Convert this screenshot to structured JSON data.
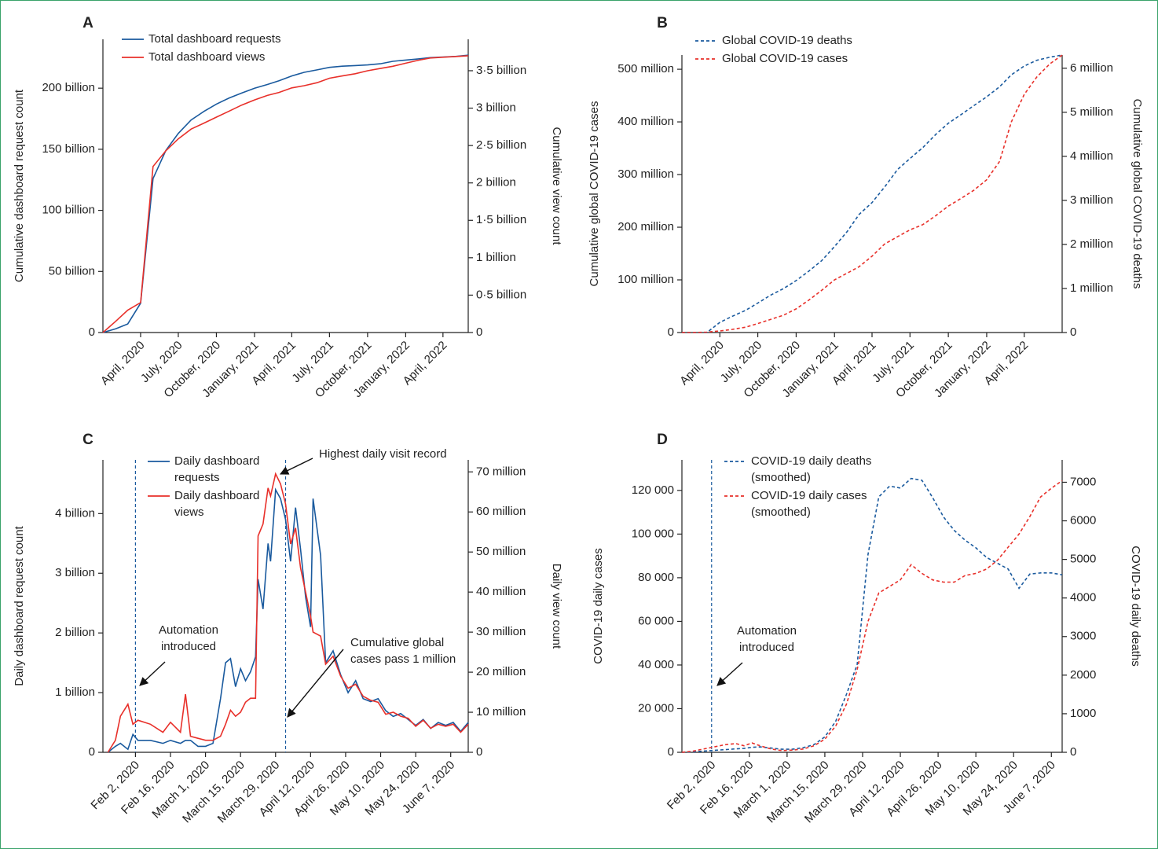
{
  "chart_data": [
    {
      "type": "line",
      "panel": "A",
      "line_style": "solid",
      "ylabel": "Cumulative dashboard request count",
      "y2label": "Cumulative view count",
      "x": [
        "2020-01",
        "2020-02",
        "2020-03",
        "2020-04",
        "2020-05",
        "2020-06",
        "2020-07",
        "2020-08",
        "2020-09",
        "2020-10",
        "2020-11",
        "2020-12",
        "2021-01",
        "2021-02",
        "2021-03",
        "2021-04",
        "2021-05",
        "2021-06",
        "2021-07",
        "2021-08",
        "2021-09",
        "2021-10",
        "2021-11",
        "2021-12",
        "2022-01",
        "2022-02",
        "2022-03",
        "2022-04",
        "2022-05",
        "2022-06"
      ],
      "xlim": [
        "2020-01",
        "2022-06"
      ],
      "xticks": [
        {
          "value": "2020-04",
          "label": "April, 2020"
        },
        {
          "value": "2020-07",
          "label": "July, 2020"
        },
        {
          "value": "2020-10",
          "label": "October, 2020"
        },
        {
          "value": "2021-01",
          "label": "January, 2021"
        },
        {
          "value": "2021-04",
          "label": "April, 2021"
        },
        {
          "value": "2021-07",
          "label": "July, 2021"
        },
        {
          "value": "2021-10",
          "label": "October, 2021"
        },
        {
          "value": "2022-01",
          "label": "January, 2022"
        },
        {
          "value": "2022-04",
          "label": "April, 2022"
        }
      ],
      "ylim": [
        0,
        240
      ],
      "yticks": [
        0,
        {
          "value": 50,
          "label": "50 billion"
        },
        {
          "value": 100,
          "label": "100 billion"
        },
        {
          "value": 150,
          "label": "150 billion"
        },
        {
          "value": 200,
          "label": "200 billion"
        }
      ],
      "y2lim": [
        0,
        3.92
      ],
      "y2ticks": [
        0,
        {
          "value": 0.5,
          "label": "0·5 billion"
        },
        {
          "value": 1,
          "label": "1 billion"
        },
        {
          "value": 1.5,
          "label": "1·5 billion"
        },
        {
          "value": 2,
          "label": "2 billion"
        },
        {
          "value": 2.5,
          "label": "2·5 billion"
        },
        {
          "value": 3,
          "label": "3 billion"
        },
        {
          "value": 3.5,
          "label": "3·5 billion"
        }
      ],
      "series": [
        {
          "name": "Total dashboard requests",
          "color": "#1a5a9e",
          "values": [
            0,
            3,
            7,
            24,
            126,
            149,
            163,
            174,
            181,
            187,
            192,
            196,
            200,
            203,
            206,
            210,
            213,
            215,
            217,
            218,
            218.5,
            219,
            220,
            222,
            223,
            224,
            225,
            225.5,
            226,
            227
          ]
        },
        {
          "name": "Total dashboard views",
          "color": "#e8302a",
          "axis": "y2",
          "values": [
            0,
            0.15,
            0.3,
            0.4,
            2.22,
            2.43,
            2.59,
            2.72,
            2.8,
            2.88,
            2.96,
            3.04,
            3.11,
            3.17,
            3.21,
            3.27,
            3.3,
            3.34,
            3.4,
            3.43,
            3.46,
            3.5,
            3.53,
            3.56,
            3.6,
            3.64,
            3.67,
            3.68,
            3.69,
            3.7
          ]
        }
      ]
    },
    {
      "type": "line",
      "panel": "B",
      "line_style": "dashed",
      "ylabel": "Cumulative global COVID-19 cases",
      "y2label": "Cumulative global COVID-19 deaths",
      "x": [
        "2020-01",
        "2020-02",
        "2020-03",
        "2020-04",
        "2020-05",
        "2020-06",
        "2020-07",
        "2020-08",
        "2020-09",
        "2020-10",
        "2020-11",
        "2020-12",
        "2021-01",
        "2021-02",
        "2021-03",
        "2021-04",
        "2021-05",
        "2021-06",
        "2021-07",
        "2021-08",
        "2021-09",
        "2021-10",
        "2021-11",
        "2021-12",
        "2022-01",
        "2022-02",
        "2022-03",
        "2022-04",
        "2022-05",
        "2022-06",
        "2022-07"
      ],
      "xlim": [
        "2020-01",
        "2022-07"
      ],
      "xticks": [
        {
          "value": "2020-04",
          "label": "April, 2020"
        },
        {
          "value": "2020-07",
          "label": "July, 2020"
        },
        {
          "value": "2020-10",
          "label": "October, 2020"
        },
        {
          "value": "2021-01",
          "label": "January, 2021"
        },
        {
          "value": "2021-04",
          "label": "April, 2021"
        },
        {
          "value": "2021-07",
          "label": "July, 2021"
        },
        {
          "value": "2021-10",
          "label": "October, 2021"
        },
        {
          "value": "2022-01",
          "label": "January, 2022"
        },
        {
          "value": "2022-04",
          "label": "April, 2022"
        }
      ],
      "ylim": [
        0,
        527
      ],
      "yticks": [
        0,
        {
          "value": 100,
          "label": "100 million"
        },
        {
          "value": 200,
          "label": "200 million"
        },
        {
          "value": 300,
          "label": "300 million"
        },
        {
          "value": 400,
          "label": "400 million"
        },
        {
          "value": 500,
          "label": "500 million"
        }
      ],
      "y2lim": [
        0,
        6.3
      ],
      "y2ticks": [
        0,
        {
          "value": 1,
          "label": "1 million"
        },
        {
          "value": 2,
          "label": "2 million"
        },
        {
          "value": 3,
          "label": "3 million"
        },
        {
          "value": 4,
          "label": "4 million"
        },
        {
          "value": 5,
          "label": "5 million"
        },
        {
          "value": 6,
          "label": "6 million"
        }
      ],
      "series": [
        {
          "name": "Global COVID-19 deaths",
          "color": "#1a5a9e",
          "axis": "y2",
          "values": [
            0,
            0,
            0,
            0.23,
            0.37,
            0.5,
            0.67,
            0.85,
            1.0,
            1.18,
            1.4,
            1.63,
            1.95,
            2.3,
            2.68,
            2.95,
            3.3,
            3.7,
            3.95,
            4.2,
            4.5,
            4.75,
            4.95,
            5.15,
            5.35,
            5.58,
            5.85,
            6.05,
            6.18,
            6.25,
            6.3
          ]
        },
        {
          "name": "Global COVID-19 cases",
          "color": "#e8302a",
          "values": [
            0,
            0,
            0.8,
            3,
            6,
            10,
            17,
            25,
            33,
            45,
            62,
            80,
            100,
            113,
            125,
            145,
            168,
            182,
            195,
            205,
            222,
            240,
            255,
            270,
            290,
            325,
            400,
            452,
            485,
            510,
            527
          ]
        }
      ]
    },
    {
      "type": "line",
      "panel": "C",
      "line_style": "solid",
      "ylabel": "Daily dashboard request count",
      "y2label": "Daily view count",
      "x": [
        "2020-01-22",
        "2020-01-25",
        "2020-01-27",
        "2020-01-30",
        "2020-02-01",
        "2020-02-03",
        "2020-02-08",
        "2020-02-13",
        "2020-02-16",
        "2020-02-20",
        "2020-02-22",
        "2020-02-24",
        "2020-02-27",
        "2020-03-01",
        "2020-03-04",
        "2020-03-07",
        "2020-03-09",
        "2020-03-11",
        "2020-03-13",
        "2020-03-15",
        "2020-03-17",
        "2020-03-19",
        "2020-03-21",
        "2020-03-22",
        "2020-03-24",
        "2020-03-26",
        "2020-03-27",
        "2020-03-29",
        "2020-03-31",
        "2020-04-02",
        "2020-04-04",
        "2020-04-06",
        "2020-04-08",
        "2020-04-10",
        "2020-04-12",
        "2020-04-13",
        "2020-04-16",
        "2020-04-18",
        "2020-04-21",
        "2020-04-24",
        "2020-04-27",
        "2020-04-30",
        "2020-05-03",
        "2020-05-06",
        "2020-05-09",
        "2020-05-12",
        "2020-05-15",
        "2020-05-18",
        "2020-05-21",
        "2020-05-24",
        "2020-05-27",
        "2020-05-30",
        "2020-06-02",
        "2020-06-05",
        "2020-06-08",
        "2020-06-11",
        "2020-06-14"
      ],
      "xlim": [
        "2020-01-20",
        "2020-06-14"
      ],
      "xticks": [
        {
          "value": "2020-02-02",
          "label": "Feb 2, 2020"
        },
        {
          "value": "2020-02-16",
          "label": "Feb 16, 2020"
        },
        {
          "value": "2020-03-01",
          "label": "March 1, 2020"
        },
        {
          "value": "2020-03-15",
          "label": "March 15, 2020"
        },
        {
          "value": "2020-03-29",
          "label": "March 29, 2020"
        },
        {
          "value": "2020-04-12",
          "label": "April 12, 2020"
        },
        {
          "value": "2020-04-26",
          "label": "April 26, 2020"
        },
        {
          "value": "2020-05-10",
          "label": "May 10, 2020"
        },
        {
          "value": "2020-05-24",
          "label": "May 24, 2020"
        },
        {
          "value": "2020-06-07",
          "label": "June 7, 2020"
        }
      ],
      "ylim": [
        0,
        4.9
      ],
      "yticks": [
        0,
        {
          "value": 1,
          "label": "1 billion"
        },
        {
          "value": 2,
          "label": "2 billion"
        },
        {
          "value": 3,
          "label": "3 billion"
        },
        {
          "value": 4,
          "label": "4 billion"
        }
      ],
      "y2lim": [
        0,
        73
      ],
      "y2ticks": [
        0,
        {
          "value": 10,
          "label": "10 million"
        },
        {
          "value": 20,
          "label": "20 million"
        },
        {
          "value": 30,
          "label": "30 million"
        },
        {
          "value": 40,
          "label": "40 million"
        },
        {
          "value": 50,
          "label": "50 million"
        },
        {
          "value": 60,
          "label": "60 million"
        },
        {
          "value": 70,
          "label": "70 million"
        }
      ],
      "vlines": [
        "2020-02-02",
        "2020-04-02"
      ],
      "annotations": [
        {
          "text": "Automation introduced"
        },
        {
          "text": "Highest daily visit record"
        },
        {
          "text": "Cumulative global cases pass 1 million"
        }
      ],
      "series": [
        {
          "name": "Daily dashboard requests",
          "color": "#1a5a9e",
          "values": [
            0,
            0.1,
            0.15,
            0.05,
            0.3,
            0.2,
            0.2,
            0.15,
            0.2,
            0.15,
            0.2,
            0.2,
            0.1,
            0.1,
            0.15,
            0.9,
            1.5,
            1.57,
            1.1,
            1.4,
            1.2,
            1.35,
            1.6,
            2.9,
            2.4,
            3.5,
            3.2,
            4.4,
            4.25,
            3.9,
            3.2,
            4.1,
            3.4,
            2.6,
            2.1,
            4.25,
            3.3,
            1.5,
            1.7,
            1.3,
            1.0,
            1.2,
            0.9,
            0.85,
            0.9,
            0.7,
            0.6,
            0.65,
            0.55,
            0.45,
            0.55,
            0.4,
            0.5,
            0.45,
            0.5,
            0.35,
            0.5
          ]
        },
        {
          "name": "Daily dashboard views",
          "color": "#e8302a",
          "axis": "y2",
          "values": [
            0,
            3,
            9,
            12,
            7,
            8,
            7,
            5,
            7.5,
            5,
            14.5,
            4,
            3.5,
            3,
            3,
            4,
            7,
            10.5,
            9,
            10,
            12.5,
            13.5,
            13.5,
            54,
            57,
            66,
            64,
            69.5,
            67,
            62,
            52,
            56,
            46,
            40,
            34,
            30,
            29,
            22,
            24,
            19,
            16,
            17,
            14,
            13,
            12.5,
            9.5,
            10,
            9,
            8.5,
            6.5,
            8,
            6,
            7,
            6.5,
            7,
            5,
            7
          ]
        }
      ]
    },
    {
      "type": "line",
      "panel": "D",
      "line_style": "dashed",
      "ylabel": "COVID-19 daily cases",
      "y2label": "COVID-19 daily deaths",
      "x": [
        "2020-01-22",
        "2020-01-26",
        "2020-01-30",
        "2020-02-03",
        "2020-02-07",
        "2020-02-11",
        "2020-02-14",
        "2020-02-17",
        "2020-02-20",
        "2020-02-24",
        "2020-02-28",
        "2020-03-03",
        "2020-03-07",
        "2020-03-11",
        "2020-03-15",
        "2020-03-19",
        "2020-03-23",
        "2020-03-27",
        "2020-03-31",
        "2020-04-04",
        "2020-04-08",
        "2020-04-12",
        "2020-04-16",
        "2020-04-20",
        "2020-04-24",
        "2020-04-28",
        "2020-05-02",
        "2020-05-06",
        "2020-05-10",
        "2020-05-14",
        "2020-05-18",
        "2020-05-22",
        "2020-05-26",
        "2020-05-30",
        "2020-06-03",
        "2020-06-07",
        "2020-06-11"
      ],
      "xlim": [
        "2020-01-22",
        "2020-06-11"
      ],
      "xticks": [
        {
          "value": "2020-02-02",
          "label": "Feb 2, 2020"
        },
        {
          "value": "2020-02-16",
          "label": "Feb 16, 2020"
        },
        {
          "value": "2020-03-01",
          "label": "March 1, 2020"
        },
        {
          "value": "2020-03-15",
          "label": "March 15, 2020"
        },
        {
          "value": "2020-03-29",
          "label": "March 29, 2020"
        },
        {
          "value": "2020-04-12",
          "label": "April 12, 2020"
        },
        {
          "value": "2020-04-26",
          "label": "April 26, 2020"
        },
        {
          "value": "2020-05-10",
          "label": "May 10, 2020"
        },
        {
          "value": "2020-05-24",
          "label": "May 24, 2020"
        },
        {
          "value": "2020-06-07",
          "label": "June 7, 2020"
        }
      ],
      "ylim": [
        0,
        134000
      ],
      "yticks": [
        0,
        {
          "value": 20000,
          "label": "20 000"
        },
        {
          "value": 40000,
          "label": "40 000"
        },
        {
          "value": 60000,
          "label": "60 000"
        },
        {
          "value": 80000,
          "label": "80 000"
        },
        {
          "value": 100000,
          "label": "100 000"
        },
        {
          "value": 120000,
          "label": "120 000"
        }
      ],
      "y2lim": [
        0,
        7580
      ],
      "y2ticks": [
        0,
        1000,
        2000,
        3000,
        4000,
        5000,
        6000,
        7000
      ],
      "vlines": [
        "2020-02-02"
      ],
      "annotations": [
        {
          "text": "Automation introduced"
        }
      ],
      "series": [
        {
          "name": "COVID-19 daily deaths (smoothed)",
          "color": "#1a5a9e",
          "axis": "y2",
          "values": [
            0,
            10,
            30,
            50,
            70,
            90,
            100,
            130,
            140,
            110,
            80,
            80,
            120,
            200,
            400,
            800,
            1500,
            2280,
            5130,
            6620,
            6900,
            6850,
            7100,
            7050,
            6600,
            6100,
            5750,
            5500,
            5300,
            5050,
            4900,
            4750,
            4250,
            4620,
            4650,
            4650,
            4600
          ]
        },
        {
          "name": "COVID-19 daily cases (smoothed)",
          "color": "#e8302a",
          "values": [
            0,
            500,
            1500,
            2500,
            3500,
            4000,
            3000,
            4300,
            3000,
            1500,
            800,
            1000,
            1500,
            3000,
            6000,
            12000,
            22000,
            38000,
            60000,
            73000,
            76000,
            79000,
            86000,
            82000,
            79000,
            78000,
            78000,
            81000,
            82000,
            84000,
            88000,
            94000,
            100000,
            108000,
            117000,
            121000,
            124500
          ]
        }
      ]
    }
  ]
}
